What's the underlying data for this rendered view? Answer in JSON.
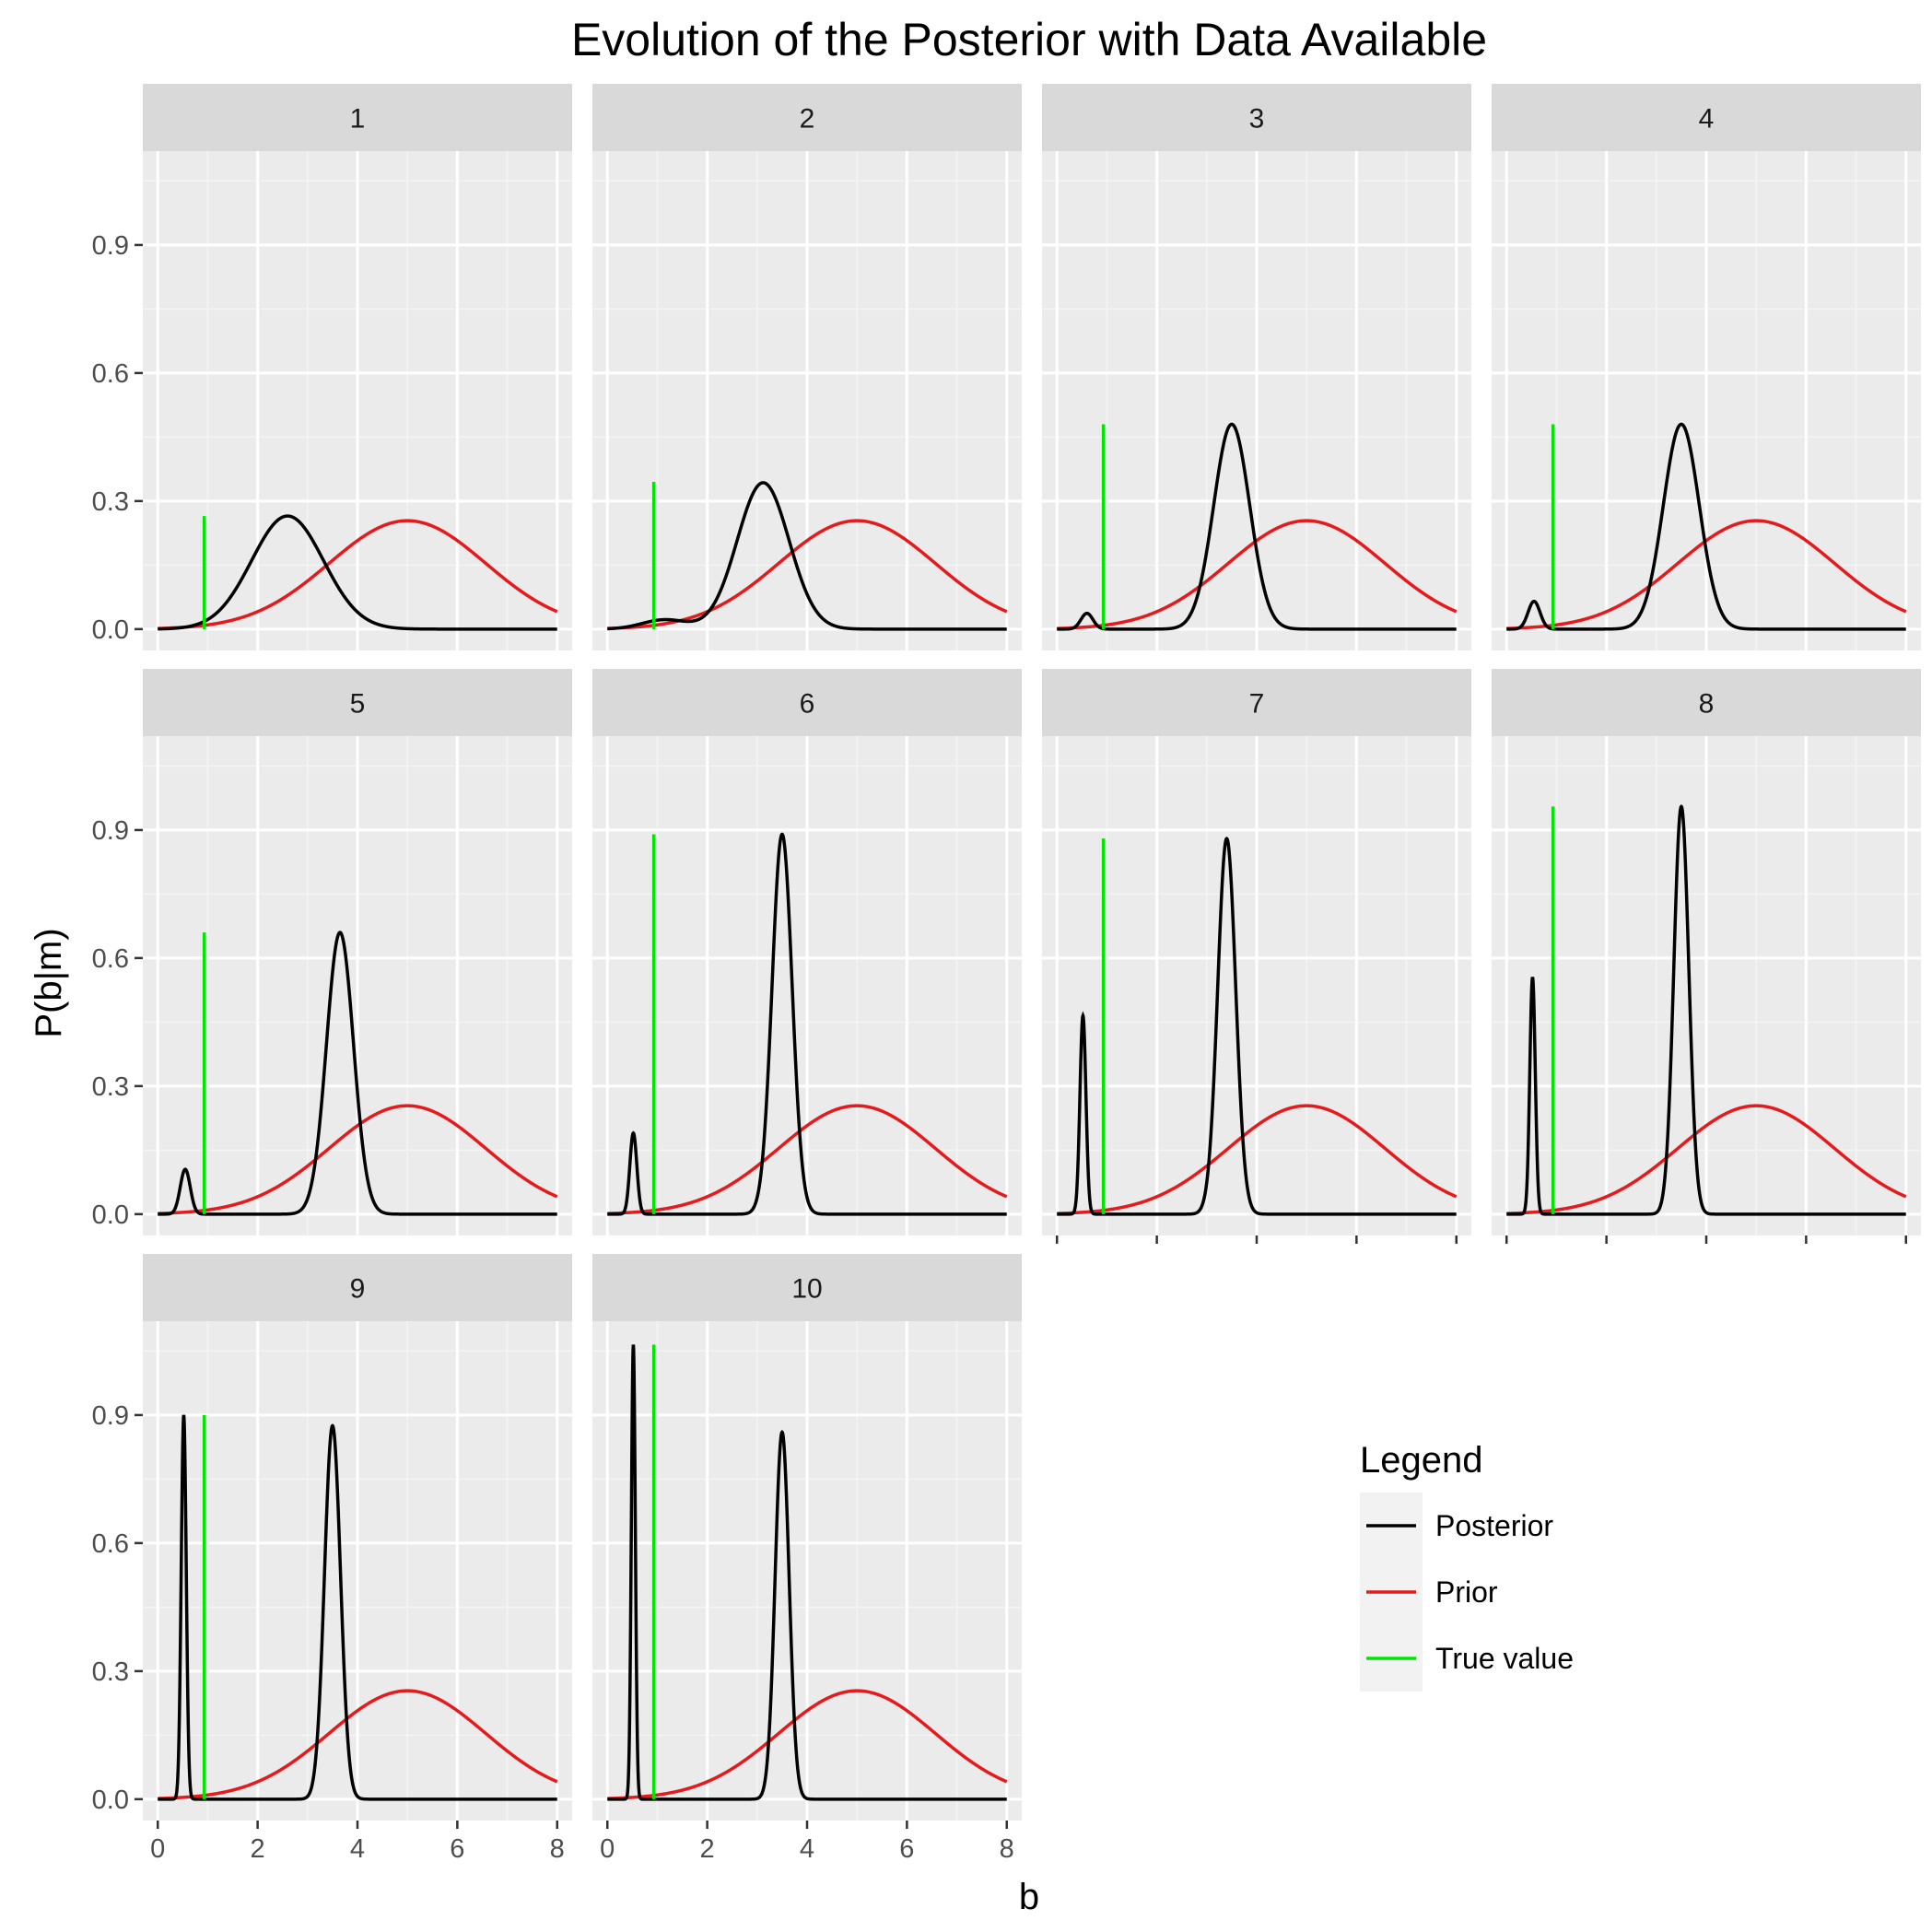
{
  "chart_data": {
    "type": "line",
    "title": "Evolution of the Posterior with Data Available",
    "xlabel": "b",
    "ylabel": "P(b|m)",
    "xlim": [
      -0.3,
      8.3
    ],
    "ylim": [
      -0.05,
      1.12
    ],
    "x_ticks": [
      "0",
      "2",
      "4",
      "6",
      "8"
    ],
    "y_ticks": [
      "0.0",
      "0.3",
      "0.6",
      "0.9"
    ],
    "grid": true,
    "legend": {
      "title": "Legend",
      "position": "bottom-right",
      "entries": [
        {
          "label": "Posterior",
          "color": "#000000"
        },
        {
          "label": "Prior",
          "color": "#e41a1c"
        },
        {
          "label": "True value",
          "color": "#00e600"
        }
      ]
    },
    "prior": {
      "mean": 5,
      "sd": 1.57,
      "peak": 0.254
    },
    "true_value": 0.93,
    "panels": [
      {
        "label": "1",
        "true_line_height": 0.265,
        "posterior_components": [
          {
            "mean": 2.6,
            "sd": 0.72,
            "peak": 0.265
          }
        ]
      },
      {
        "label": "2",
        "true_line_height": 0.345,
        "posterior_components": [
          {
            "mean": 3.12,
            "sd": 0.52,
            "peak": 0.343
          },
          {
            "mean": 1.15,
            "sd": 0.45,
            "peak": 0.022
          }
        ]
      },
      {
        "label": "3",
        "true_line_height": 0.48,
        "posterior_components": [
          {
            "mean": 3.5,
            "sd": 0.36,
            "peak": 0.48
          },
          {
            "mean": 0.6,
            "sd": 0.12,
            "peak": 0.037
          }
        ]
      },
      {
        "label": "4",
        "true_line_height": 0.48,
        "posterior_components": [
          {
            "mean": 3.5,
            "sd": 0.36,
            "peak": 0.48
          },
          {
            "mean": 0.55,
            "sd": 0.12,
            "peak": 0.065
          }
        ]
      },
      {
        "label": "5",
        "true_line_height": 0.66,
        "posterior_components": [
          {
            "mean": 3.65,
            "sd": 0.27,
            "peak": 0.66
          },
          {
            "mean": 0.55,
            "sd": 0.1,
            "peak": 0.105
          }
        ]
      },
      {
        "label": "6",
        "true_line_height": 0.89,
        "posterior_components": [
          {
            "mean": 3.5,
            "sd": 0.2,
            "peak": 0.89
          },
          {
            "mean": 0.52,
            "sd": 0.07,
            "peak": 0.19
          }
        ]
      },
      {
        "label": "7",
        "true_line_height": 0.88,
        "posterior_components": [
          {
            "mean": 3.4,
            "sd": 0.18,
            "peak": 0.88
          },
          {
            "mean": 0.52,
            "sd": 0.06,
            "peak": 0.465
          }
        ]
      },
      {
        "label": "8",
        "true_line_height": 0.955,
        "posterior_components": [
          {
            "mean": 3.5,
            "sd": 0.15,
            "peak": 0.955
          },
          {
            "mean": 0.52,
            "sd": 0.055,
            "peak": 0.555
          }
        ]
      },
      {
        "label": "9",
        "true_line_height": 0.9,
        "posterior_components": [
          {
            "mean": 3.5,
            "sd": 0.16,
            "peak": 0.875
          },
          {
            "mean": 0.52,
            "sd": 0.05,
            "peak": 0.9
          }
        ]
      },
      {
        "label": "10",
        "true_line_height": 1.065,
        "posterior_components": [
          {
            "mean": 3.5,
            "sd": 0.14,
            "peak": 0.86
          },
          {
            "mean": 0.52,
            "sd": 0.04,
            "peak": 1.065
          }
        ]
      }
    ]
  }
}
